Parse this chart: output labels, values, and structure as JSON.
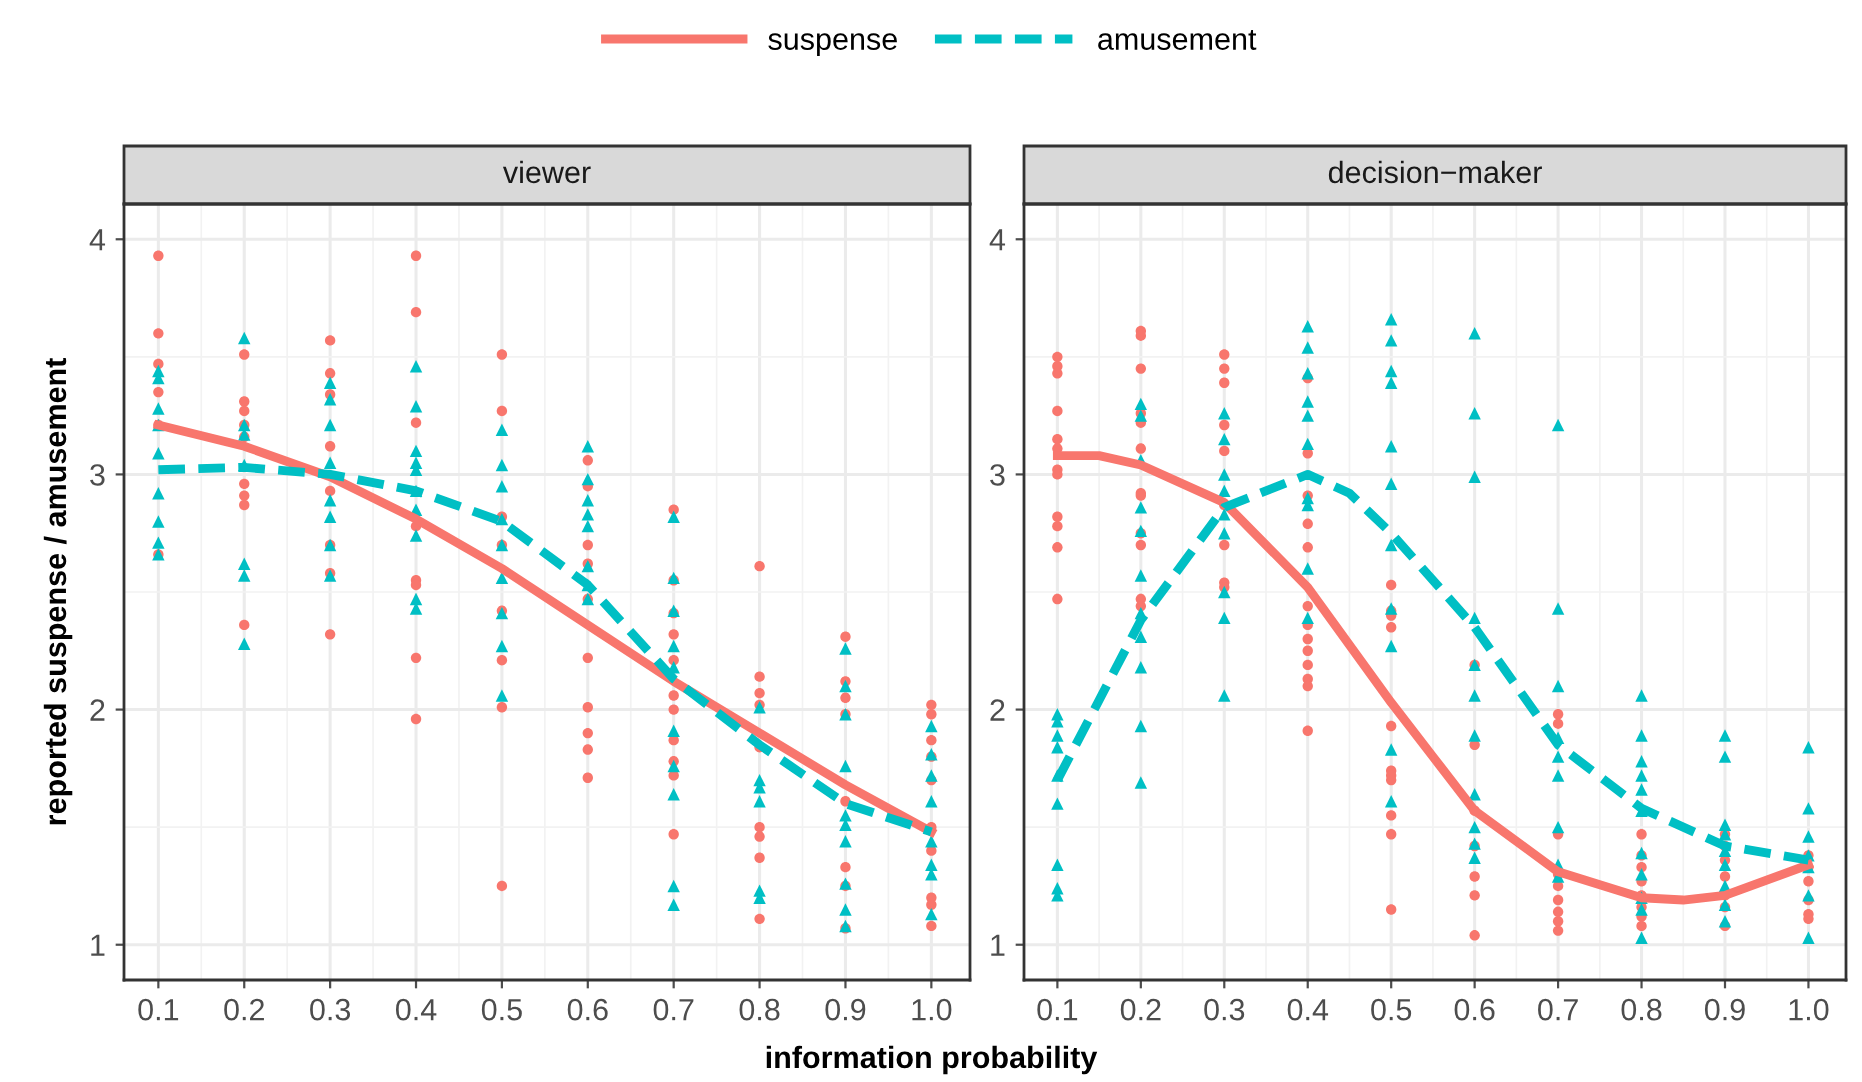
{
  "chart_data": [
    {
      "type": "scatter",
      "title": "viewer",
      "xlabel": "information probability",
      "ylabel": "reported suspense / amusement",
      "legend": "top",
      "grid": true,
      "xlim": [
        0.06,
        1.045
      ],
      "ylim": [
        0.85,
        4.15
      ],
      "xticks": [
        0.1,
        0.2,
        0.3,
        0.4,
        0.5,
        0.6,
        0.7,
        0.8,
        0.9,
        {
          "value": 1.0,
          "label": "1.0"
        }
      ],
      "yticks": [
        1,
        2,
        3,
        4
      ],
      "series": [
        {
          "color": "#f8766d",
          "marker": "circle",
          "x": [
            0.1,
            0.1,
            0.1,
            0.1,
            0.1,
            0.1,
            0.2,
            0.2,
            0.2,
            0.2,
            0.2,
            0.2,
            0.2,
            0.2,
            0.2,
            0.3,
            0.3,
            0.3,
            0.3,
            0.3,
            0.3,
            0.3,
            0.3,
            0.4,
            0.4,
            0.4,
            0.4,
            0.4,
            0.4,
            0.4,
            0.4,
            0.5,
            0.5,
            0.5,
            0.5,
            0.5,
            0.5,
            0.5,
            0.5,
            0.6,
            0.6,
            0.6,
            0.6,
            0.6,
            0.6,
            0.6,
            0.6,
            0.6,
            0.6,
            0.7,
            0.7,
            0.7,
            0.7,
            0.7,
            0.7,
            0.7,
            0.7,
            0.7,
            0.7,
            0.7,
            0.8,
            0.8,
            0.8,
            0.8,
            0.8,
            0.8,
            0.8,
            0.8,
            0.8,
            0.9,
            0.9,
            0.9,
            0.9,
            0.9,
            0.9,
            0.9,
            0.9,
            1.0,
            1.0,
            1.0,
            1.0,
            1.0,
            1.0,
            1.0,
            1.0,
            1.0,
            1.0
          ],
          "values": [
            3.93,
            3.6,
            3.47,
            3.35,
            3.21,
            2.66,
            3.51,
            3.31,
            3.27,
            3.21,
            3.16,
            2.96,
            2.91,
            2.87,
            2.36,
            3.57,
            3.43,
            3.34,
            3.12,
            2.93,
            2.7,
            2.58,
            2.32,
            3.93,
            3.69,
            3.22,
            2.78,
            2.55,
            2.53,
            2.22,
            1.96,
            3.51,
            3.27,
            2.82,
            2.7,
            2.42,
            2.21,
            2.01,
            1.25,
            3.06,
            2.95,
            2.7,
            2.62,
            2.47,
            2.22,
            2.01,
            1.9,
            1.83,
            1.71,
            2.85,
            2.55,
            2.41,
            2.32,
            2.21,
            2.06,
            2.0,
            1.87,
            1.78,
            1.72,
            1.47,
            2.61,
            2.14,
            2.07,
            2.02,
            1.84,
            1.5,
            1.46,
            1.37,
            1.11,
            2.31,
            2.12,
            2.05,
            1.98,
            1.61,
            1.33,
            1.25,
            1.07,
            2.02,
            1.98,
            1.87,
            1.8,
            1.7,
            1.5,
            1.4,
            1.2,
            1.17,
            1.08
          ]
        },
        {
          "color": "#00bfc4",
          "marker": "triangle",
          "x": [
            0.1,
            0.1,
            0.1,
            0.1,
            0.1,
            0.1,
            0.1,
            0.1,
            0.1,
            0.2,
            0.2,
            0.2,
            0.2,
            0.2,
            0.2,
            0.2,
            0.3,
            0.3,
            0.3,
            0.3,
            0.3,
            0.3,
            0.3,
            0.3,
            0.4,
            0.4,
            0.4,
            0.4,
            0.4,
            0.4,
            0.4,
            0.4,
            0.4,
            0.4,
            0.5,
            0.5,
            0.5,
            0.5,
            0.5,
            0.5,
            0.5,
            0.5,
            0.5,
            0.6,
            0.6,
            0.6,
            0.6,
            0.6,
            0.6,
            0.6,
            0.6,
            0.7,
            0.7,
            0.7,
            0.7,
            0.7,
            0.7,
            0.7,
            0.7,
            0.7,
            0.7,
            0.8,
            0.8,
            0.8,
            0.8,
            0.8,
            0.8,
            0.9,
            0.9,
            0.9,
            0.9,
            0.9,
            0.9,
            0.9,
            0.9,
            0.9,
            0.9,
            1.0,
            1.0,
            1.0,
            1.0,
            1.0,
            1.0,
            1.0,
            1.0
          ],
          "values": [
            3.44,
            3.41,
            3.28,
            3.21,
            3.09,
            2.92,
            2.8,
            2.71,
            2.66,
            3.58,
            3.21,
            3.17,
            3.04,
            2.62,
            2.57,
            2.28,
            3.39,
            3.32,
            3.21,
            3.05,
            2.89,
            2.82,
            2.7,
            2.57,
            3.46,
            3.29,
            3.1,
            3.05,
            3.02,
            2.93,
            2.85,
            2.74,
            2.47,
            2.43,
            3.19,
            3.04,
            2.95,
            2.81,
            2.7,
            2.56,
            2.41,
            2.27,
            2.06,
            3.12,
            2.98,
            2.89,
            2.83,
            2.78,
            2.61,
            2.53,
            2.47,
            2.82,
            2.56,
            2.42,
            2.27,
            2.18,
            1.91,
            1.76,
            1.64,
            1.25,
            1.17,
            2.01,
            1.7,
            1.67,
            1.61,
            1.23,
            1.2,
            2.26,
            2.1,
            1.98,
            1.76,
            1.55,
            1.51,
            1.44,
            1.26,
            1.15,
            1.08,
            1.93,
            1.81,
            1.72,
            1.61,
            1.44,
            1.34,
            1.3,
            1.13
          ]
        },
        {
          "type": "line",
          "name": "suspense",
          "color": "#f8766d",
          "line_style": "solid",
          "x": [
            0.1,
            0.2,
            0.3,
            0.4,
            0.5,
            0.6,
            0.7,
            0.8,
            0.9,
            1.0
          ],
          "values": [
            3.21,
            3.12,
            2.99,
            2.81,
            2.6,
            2.36,
            2.12,
            1.9,
            1.68,
            1.48
          ]
        },
        {
          "type": "line",
          "name": "amusement",
          "color": "#00bfc4",
          "line_style": "dashed",
          "x": [
            0.1,
            0.2,
            0.3,
            0.4,
            0.5,
            0.6,
            0.7,
            0.8,
            0.9,
            1.0
          ],
          "values": [
            3.02,
            3.03,
            3.0,
            2.93,
            2.8,
            2.53,
            2.13,
            1.85,
            1.6,
            1.48
          ]
        }
      ]
    },
    {
      "type": "scatter",
      "title": "decision−maker",
      "grid": true,
      "xlim": [
        0.06,
        1.045
      ],
      "ylim": [
        0.85,
        4.15
      ],
      "xticks": [
        0.1,
        0.2,
        0.3,
        0.4,
        0.5,
        0.6,
        0.7,
        0.8,
        0.9,
        {
          "value": 1.0,
          "label": "1.0"
        }
      ],
      "yticks": [
        1,
        2,
        3,
        4
      ],
      "series": [
        {
          "color": "#f8766d",
          "marker": "circle",
          "x": [
            0.1,
            0.1,
            0.1,
            0.1,
            0.1,
            0.1,
            0.1,
            0.1,
            0.1,
            0.1,
            0.1,
            0.1,
            0.2,
            0.2,
            0.2,
            0.2,
            0.2,
            0.2,
            0.2,
            0.2,
            0.2,
            0.2,
            0.2,
            0.2,
            0.3,
            0.3,
            0.3,
            0.3,
            0.3,
            0.3,
            0.3,
            0.3,
            0.3,
            0.4,
            0.4,
            0.4,
            0.4,
            0.4,
            0.4,
            0.4,
            0.4,
            0.4,
            0.4,
            0.4,
            0.4,
            0.4,
            0.5,
            0.5,
            0.5,
            0.5,
            0.5,
            0.5,
            0.5,
            0.5,
            0.5,
            0.5,
            0.5,
            0.6,
            0.6,
            0.6,
            0.6,
            0.6,
            0.6,
            0.6,
            0.7,
            0.7,
            0.7,
            0.7,
            0.7,
            0.7,
            0.7,
            0.7,
            0.7,
            0.8,
            0.8,
            0.8,
            0.8,
            0.8,
            0.8,
            0.8,
            0.8,
            0.9,
            0.9,
            0.9,
            0.9,
            0.9,
            0.9,
            0.9,
            1.0,
            1.0,
            1.0,
            1.0,
            1.0,
            1.0
          ],
          "values": [
            3.5,
            3.46,
            3.43,
            3.27,
            3.15,
            3.11,
            3.02,
            3.0,
            2.82,
            2.78,
            2.69,
            2.47,
            3.61,
            3.59,
            3.45,
            3.26,
            3.22,
            3.11,
            2.92,
            2.91,
            2.75,
            2.7,
            2.47,
            2.44,
            3.51,
            3.45,
            3.39,
            3.21,
            3.1,
            2.87,
            2.7,
            2.54,
            2.52,
            3.41,
            3.09,
            2.91,
            2.79,
            2.69,
            2.44,
            2.36,
            2.3,
            2.25,
            2.19,
            2.13,
            2.1,
            1.91,
            2.53,
            2.42,
            2.4,
            2.35,
            1.93,
            1.74,
            1.72,
            1.7,
            1.55,
            1.47,
            1.15,
            2.19,
            1.85,
            1.57,
            1.42,
            1.29,
            1.21,
            1.04,
            1.98,
            1.94,
            1.47,
            1.3,
            1.25,
            1.19,
            1.14,
            1.1,
            1.06,
            1.47,
            1.38,
            1.33,
            1.27,
            1.21,
            1.16,
            1.12,
            1.08,
            1.47,
            1.42,
            1.36,
            1.29,
            1.21,
            1.16,
            1.08,
            1.38,
            1.33,
            1.27,
            1.19,
            1.13,
            1.11
          ]
        },
        {
          "color": "#00bfc4",
          "marker": "triangle",
          "x": [
            0.1,
            0.1,
            0.1,
            0.1,
            0.1,
            0.1,
            0.1,
            0.1,
            0.1,
            0.2,
            0.2,
            0.2,
            0.2,
            0.2,
            0.2,
            0.2,
            0.2,
            0.2,
            0.2,
            0.2,
            0.3,
            0.3,
            0.3,
            0.3,
            0.3,
            0.3,
            0.3,
            0.3,
            0.3,
            0.4,
            0.4,
            0.4,
            0.4,
            0.4,
            0.4,
            0.4,
            0.4,
            0.4,
            0.4,
            0.5,
            0.5,
            0.5,
            0.5,
            0.5,
            0.5,
            0.5,
            0.5,
            0.5,
            0.5,
            0.5,
            0.6,
            0.6,
            0.6,
            0.6,
            0.6,
            0.6,
            0.6,
            0.6,
            0.6,
            0.6,
            0.6,
            0.7,
            0.7,
            0.7,
            0.7,
            0.7,
            0.7,
            0.7,
            0.7,
            0.7,
            0.8,
            0.8,
            0.8,
            0.8,
            0.8,
            0.8,
            0.8,
            0.8,
            0.8,
            0.8,
            0.8,
            0.9,
            0.9,
            0.9,
            0.9,
            0.9,
            0.9,
            0.9,
            0.9,
            0.9,
            1.0,
            1.0,
            1.0,
            1.0,
            1.0,
            1.0,
            1.0
          ],
          "values": [
            1.98,
            1.95,
            1.89,
            1.84,
            1.72,
            1.6,
            1.34,
            1.24,
            1.21,
            3.3,
            3.25,
            3.06,
            2.86,
            2.76,
            2.57,
            2.41,
            2.31,
            2.18,
            1.93,
            1.69,
            3.26,
            3.15,
            3.0,
            2.93,
            2.83,
            2.75,
            2.5,
            2.39,
            2.06,
            3.63,
            3.54,
            3.43,
            3.31,
            3.25,
            3.13,
            2.9,
            2.87,
            2.6,
            2.39,
            3.66,
            3.57,
            3.44,
            3.39,
            3.12,
            2.96,
            2.7,
            2.43,
            2.27,
            1.83,
            1.61,
            3.6,
            3.26,
            2.99,
            2.39,
            2.19,
            2.06,
            1.89,
            1.64,
            1.5,
            1.43,
            1.37,
            3.21,
            2.43,
            2.1,
            1.88,
            1.8,
            1.72,
            1.5,
            1.34,
            1.29,
            2.06,
            1.89,
            1.78,
            1.72,
            1.66,
            1.57,
            1.39,
            1.3,
            1.2,
            1.15,
            1.03,
            1.89,
            1.8,
            1.51,
            1.47,
            1.4,
            1.34,
            1.25,
            1.17,
            1.1,
            1.84,
            1.58,
            1.46,
            1.38,
            1.33,
            1.21,
            1.03
          ]
        },
        {
          "type": "line",
          "name": "suspense",
          "color": "#f8766d",
          "line_style": "solid",
          "x": [
            0.1,
            0.15,
            0.2,
            0.3,
            0.4,
            0.5,
            0.55,
            0.6,
            0.7,
            0.8,
            0.85,
            0.9,
            1.0
          ],
          "values": [
            3.08,
            3.08,
            3.04,
            2.88,
            2.52,
            2.03,
            1.8,
            1.57,
            1.31,
            1.2,
            1.19,
            1.21,
            1.34
          ]
        },
        {
          "type": "line",
          "name": "amusement",
          "color": "#00bfc4",
          "line_style": "dashed",
          "x": [
            0.1,
            0.2,
            0.3,
            0.4,
            0.45,
            0.5,
            0.6,
            0.7,
            0.8,
            0.9,
            1.0
          ],
          "values": [
            1.7,
            2.38,
            2.86,
            3.0,
            2.92,
            2.75,
            2.35,
            1.85,
            1.58,
            1.42,
            1.36
          ]
        }
      ]
    }
  ]
}
